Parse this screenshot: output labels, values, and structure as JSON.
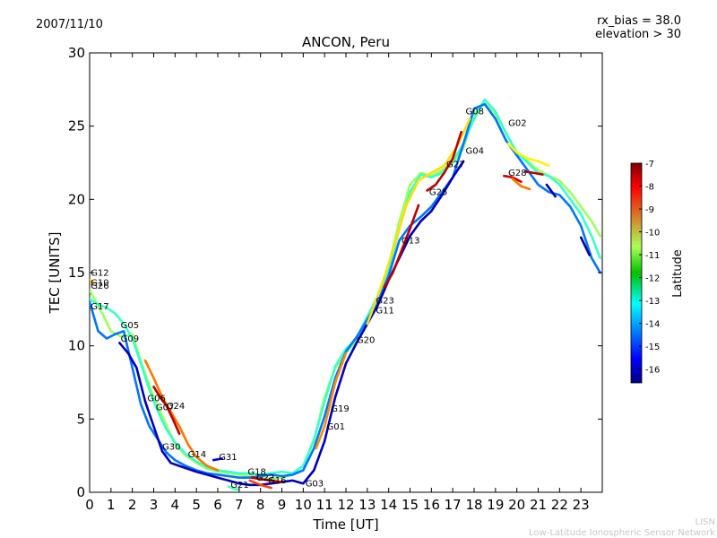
{
  "header": {
    "date": "2007/11/10",
    "rx_bias": "rx_bias = 38.0",
    "elevation": "elevation > 30"
  },
  "footer": {
    "line1": "LISN",
    "line2": "Low-Latitude Ionospheric Sensor Network"
  },
  "chart_data": {
    "type": "line",
    "title": "ANCON, Peru",
    "xlabel": "Time [UT]",
    "ylabel": "TEC [UNITS]",
    "xlim": [
      0,
      24
    ],
    "ylim": [
      0,
      30
    ],
    "xticks": [
      0,
      1,
      2,
      3,
      4,
      5,
      6,
      7,
      8,
      9,
      10,
      11,
      12,
      13,
      14,
      15,
      16,
      17,
      18,
      19,
      20,
      21,
      22,
      23
    ],
    "yticks": [
      0,
      5,
      10,
      15,
      20,
      25,
      30
    ],
    "grid": false,
    "colorbar": {
      "label": "Latitude",
      "min": -16.6,
      "max": -7,
      "ticks": [
        -7,
        -8,
        -9,
        -10,
        -11,
        -12,
        -13,
        -14,
        -15,
        -16
      ]
    },
    "annotations": [
      {
        "label": "G12",
        "x": 0.05,
        "y": 14.8
      },
      {
        "label": "G10",
        "x": 0.05,
        "y": 14.1
      },
      {
        "label": "G26",
        "x": 0.05,
        "y": 13.9
      },
      {
        "label": "G17",
        "x": 0.05,
        "y": 12.5
      },
      {
        "label": "G05",
        "x": 1.45,
        "y": 11.2
      },
      {
        "label": "G09",
        "x": 1.45,
        "y": 10.3
      },
      {
        "label": "G06",
        "x": 2.7,
        "y": 6.2
      },
      {
        "label": "G07",
        "x": 3.1,
        "y": 5.6
      },
      {
        "label": "G24",
        "x": 3.6,
        "y": 5.7
      },
      {
        "label": "G30",
        "x": 3.4,
        "y": 2.9
      },
      {
        "label": "G14",
        "x": 4.6,
        "y": 2.4
      },
      {
        "label": "G31",
        "x": 6.05,
        "y": 2.2
      },
      {
        "label": "G21",
        "x": 6.6,
        "y": 0.3
      },
      {
        "label": "G18",
        "x": 7.4,
        "y": 1.2
      },
      {
        "label": "G22",
        "x": 7.8,
        "y": 0.8
      },
      {
        "label": "G16",
        "x": 8.35,
        "y": 0.6
      },
      {
        "label": "G03",
        "x": 10.1,
        "y": 0.4
      },
      {
        "label": "G01",
        "x": 11.1,
        "y": 4.3
      },
      {
        "label": "G19",
        "x": 11.3,
        "y": 5.5
      },
      {
        "label": "G20",
        "x": 12.5,
        "y": 10.2
      },
      {
        "label": "G23",
        "x": 13.4,
        "y": 12.9
      },
      {
        "label": "G11",
        "x": 13.4,
        "y": 12.2
      },
      {
        "label": "G13",
        "x": 14.6,
        "y": 17.0
      },
      {
        "label": "G25",
        "x": 15.9,
        "y": 20.3
      },
      {
        "label": "G27",
        "x": 16.7,
        "y": 22.2
      },
      {
        "label": "G04",
        "x": 17.6,
        "y": 23.1
      },
      {
        "label": "G08",
        "x": 17.6,
        "y": 25.8
      },
      {
        "label": "G02",
        "x": 19.6,
        "y": 25.0
      },
      {
        "label": "G28",
        "x": 19.6,
        "y": 21.6
      }
    ],
    "series": [
      {
        "lat": -11.5,
        "x": [
          0,
          0.3,
          0.6,
          1.0,
          1.5,
          2.0,
          2.5,
          3.0,
          3.5,
          4.0,
          4.5,
          5.0,
          5.5,
          6.0,
          6.5,
          7.0,
          7.5,
          8.0,
          8.5,
          9.0,
          9.5,
          10.0,
          10.5,
          11.0,
          11.5,
          12.0,
          12.5,
          13.0,
          13.5,
          14.0,
          14.5,
          15.0,
          15.5,
          16.0,
          16.5,
          17.0,
          17.5,
          18.0,
          18.5,
          19.0,
          19.5,
          20.0,
          20.5,
          21.0,
          21.5,
          22.0,
          22.5,
          23.0,
          23.5,
          23.9
        ],
        "y": [
          13.8,
          13.0,
          12.2,
          11.0,
          10.6,
          10.8,
          8.5,
          6.5,
          4.9,
          3.3,
          2.5,
          2.0,
          1.6,
          1.4,
          1.3,
          1.2,
          1.1,
          1.0,
          0.9,
          1.0,
          1.2,
          1.8,
          3.5,
          6.5,
          8.5,
          9.5,
          10.3,
          11.8,
          13.5,
          15.5,
          18.5,
          21.0,
          21.8,
          21.6,
          22.0,
          22.5,
          23.5,
          25.8,
          26.8,
          25.8,
          24.5,
          23.2,
          22.6,
          22.0,
          21.6,
          21.3,
          20.5,
          19.5,
          18.5,
          17.5
        ]
      },
      {
        "lat": -12.5,
        "x": [
          0,
          0.4,
          0.8,
          1.2,
          1.6,
          2.0,
          2.4,
          2.8,
          3.2,
          3.6,
          4.0,
          4.5,
          5.0,
          5.5,
          6.0,
          6.5,
          7.0,
          7.5,
          8.0,
          8.5,
          9.0,
          9.5,
          10.0,
          10.5,
          11.0,
          11.5,
          12.0,
          12.5,
          13.0,
          13.5,
          14.0,
          14.5,
          15.0,
          15.5,
          16.0,
          16.5,
          17.0,
          17.5,
          18.0,
          18.5,
          19.0,
          19.5,
          20.0,
          20.5,
          21.0,
          21.5,
          22.0,
          22.5,
          23.0,
          23.5,
          23.9
        ],
        "y": [
          13.2,
          12.8,
          12.6,
          12.2,
          11.5,
          10.5,
          8.8,
          7.0,
          5.5,
          4.3,
          3.4,
          2.6,
          2.1,
          1.7,
          1.5,
          1.4,
          1.3,
          1.3,
          1.2,
          1.3,
          1.4,
          1.3,
          1.8,
          3.6,
          6.2,
          8.6,
          9.8,
          10.5,
          12.0,
          13.4,
          15.2,
          18.0,
          20.5,
          21.7,
          21.5,
          21.8,
          22.6,
          23.8,
          25.5,
          26.8,
          26.0,
          24.5,
          23.2,
          22.5,
          21.8,
          21.6,
          21.0,
          20.0,
          19.0,
          17.5,
          16.0
        ]
      },
      {
        "lat": -14.3,
        "x": [
          0,
          0.4,
          0.8,
          1.2,
          1.6,
          2.0,
          2.4,
          2.8,
          3.2,
          3.6,
          4.0,
          4.5,
          5.0,
          5.5,
          6.0,
          6.5,
          7.0,
          7.5,
          8.0,
          8.5,
          9.0,
          9.5,
          10.0,
          10.5,
          11.0,
          11.5,
          12.0,
          12.5,
          13.0,
          13.5,
          14.0,
          14.5,
          15.0,
          15.5,
          16.0,
          16.5,
          17.0,
          17.5,
          18.0,
          18.5,
          19.0,
          19.5,
          20.0,
          20.5,
          21.0,
          21.5,
          22.0,
          22.5,
          23.0,
          23.5,
          23.9
        ],
        "y": [
          13.0,
          11.0,
          10.5,
          10.8,
          11.0,
          8.5,
          6.0,
          4.5,
          3.6,
          2.7,
          2.2,
          1.8,
          1.5,
          1.3,
          1.2,
          1.1,
          1.0,
          1.0,
          1.1,
          1.2,
          1.1,
          1.2,
          1.5,
          3.0,
          5.2,
          7.8,
          9.6,
          10.6,
          11.8,
          13.0,
          14.8,
          17.2,
          18.2,
          18.8,
          19.5,
          20.5,
          21.5,
          23.8,
          26.2,
          26.5,
          25.5,
          24.0,
          23.0,
          22.0,
          21.0,
          20.5,
          20.3,
          19.5,
          18.2,
          16.0,
          15.0
        ]
      },
      {
        "lat": -16.0,
        "x": [
          1.4,
          1.8,
          2.2,
          2.6,
          3.0,
          3.4,
          3.8,
          4.2,
          4.6,
          5.0,
          5.5,
          6.0,
          6.5,
          7.0,
          7.5,
          8.0,
          8.5,
          9.0,
          9.5,
          10.0,
          10.5,
          11.0,
          11.5,
          12.0,
          12.5,
          13.0,
          13.5,
          14.0,
          14.5,
          15.0,
          15.5,
          16.0,
          16.5,
          17.0,
          17.5
        ],
        "y": [
          10.2,
          9.5,
          8.5,
          6.2,
          4.5,
          2.8,
          2.0,
          1.8,
          1.6,
          1.4,
          1.2,
          1.0,
          0.8,
          0.6,
          0.5,
          0.5,
          0.6,
          0.7,
          0.8,
          0.6,
          1.5,
          3.5,
          6.5,
          8.8,
          10.2,
          11.5,
          12.8,
          14.5,
          16.0,
          17.5,
          18.5,
          19.2,
          20.3,
          21.5,
          22.6
        ]
      },
      {
        "lat": -9.3,
        "x": [
          2.6,
          3.0,
          3.4,
          3.8,
          4.2,
          4.6,
          5.0,
          5.5,
          6.0
        ],
        "y": [
          9.0,
          7.8,
          6.5,
          5.5,
          4.5,
          3.3,
          2.4,
          1.8,
          1.5
        ]
      },
      {
        "lat": -7.6,
        "x": [
          3.0,
          3.3,
          3.6,
          3.9,
          4.2
        ],
        "y": [
          7.2,
          6.5,
          5.9,
          5.0,
          4.0
        ]
      },
      {
        "lat": -7.6,
        "x": [
          13.8,
          14.2,
          14.6,
          15.0,
          15.4
        ],
        "y": [
          14.0,
          15.0,
          16.5,
          18.0,
          19.6
        ]
      },
      {
        "lat": -10.3,
        "x": [
          13.0,
          13.6,
          14.2,
          14.8,
          15.4,
          16.0,
          16.6,
          17.2,
          17.8
        ],
        "y": [
          11.5,
          13.8,
          16.5,
          19.5,
          21.3,
          21.8,
          22.3,
          23.6,
          25.5
        ]
      },
      {
        "lat": -10.5,
        "x": [
          19.6,
          20.0,
          20.5,
          21.0,
          21.5
        ],
        "y": [
          23.8,
          23.2,
          22.8,
          22.6,
          22.3
        ]
      },
      {
        "lat": -7.8,
        "x": [
          19.4,
          19.8,
          20.2
        ],
        "y": [
          21.6,
          21.5,
          21.2
        ]
      },
      {
        "lat": -7.6,
        "x": [
          20.4,
          20.8,
          21.2
        ],
        "y": [
          21.9,
          21.8,
          21.7
        ]
      },
      {
        "lat": -9.3,
        "x": [
          19.8,
          20.2,
          20.6
        ],
        "y": [
          21.4,
          20.9,
          20.7
        ]
      },
      {
        "lat": -7.6,
        "x": [
          15.8,
          16.2,
          16.6,
          17.0,
          17.4
        ],
        "y": [
          20.6,
          21.0,
          21.8,
          22.8,
          24.6
        ]
      },
      {
        "lat": -16.3,
        "x": [
          21.4,
          21.8
        ],
        "y": [
          21.0,
          20.2
        ]
      },
      {
        "lat": -16.3,
        "x": [
          23.0,
          23.4
        ],
        "y": [
          17.4,
          16.2
        ]
      },
      {
        "lat": -15.6,
        "x": [
          5.8,
          6.2
        ],
        "y": [
          2.2,
          2.3
        ]
      },
      {
        "lat": -7.6,
        "x": [
          7.6,
          8.0,
          8.5,
          9.0
        ],
        "y": [
          1.0,
          0.9,
          0.8,
          0.7
        ]
      },
      {
        "lat": -8.8,
        "x": [
          7.5,
          8.0,
          8.5
        ],
        "y": [
          0.8,
          0.5,
          0.3
        ]
      },
      {
        "lat": -12.3,
        "x": [
          6.5,
          6.8,
          7.0
        ],
        "y": [
          0.4,
          0.2,
          0.2
        ]
      },
      {
        "lat": -10.0,
        "x": [
          0,
          0.2
        ],
        "y": [
          14.5,
          14.3
        ]
      },
      {
        "lat": -9.5,
        "x": [
          10.6,
          11.0,
          11.5,
          12.0
        ],
        "y": [
          3.0,
          4.5,
          7.5,
          9.5
        ]
      }
    ]
  }
}
